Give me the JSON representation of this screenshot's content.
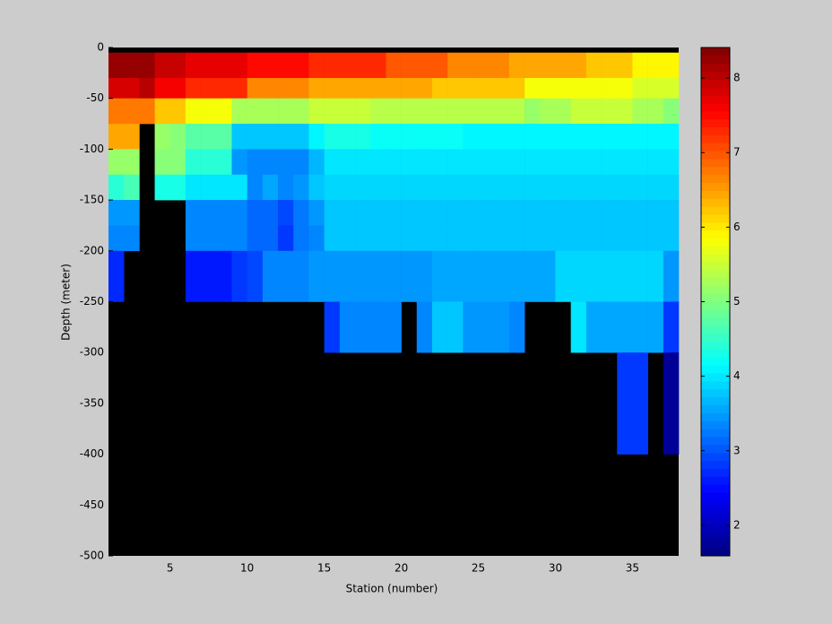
{
  "chart_data": {
    "type": "heatmap",
    "x_label": "Station (number)",
    "y_label": "Depth (meter)",
    "x": [
      1,
      2,
      3,
      4,
      5,
      6,
      7,
      8,
      9,
      10,
      11,
      12,
      13,
      14,
      15,
      16,
      17,
      18,
      19,
      20,
      21,
      22,
      23,
      24,
      25,
      26,
      27,
      28,
      29,
      30,
      31,
      32,
      33,
      34,
      35,
      36,
      37,
      38
    ],
    "y": [
      0,
      -5,
      -30,
      -50,
      -75,
      -100,
      -125,
      -150,
      -175,
      -200,
      -250,
      -300,
      -400,
      -500
    ],
    "z": [
      [
        null,
        null,
        null,
        null,
        null,
        null,
        null,
        null,
        null,
        null,
        null,
        null,
        null,
        null,
        null,
        null,
        null,
        null,
        null,
        null,
        null,
        null,
        null,
        null,
        null,
        null,
        null,
        null,
        null,
        null,
        null,
        null,
        null,
        null,
        null,
        null,
        null
      ],
      [
        8.2,
        8.2,
        8.2,
        7.9,
        7.9,
        7.7,
        7.7,
        7.7,
        7.7,
        7.5,
        7.5,
        7.5,
        7.5,
        7.3,
        7.3,
        7.3,
        7.3,
        7.3,
        7.0,
        7.0,
        7.0,
        7.0,
        6.7,
        6.7,
        6.7,
        6.7,
        6.4,
        6.4,
        6.4,
        6.4,
        6.4,
        6.2,
        6.2,
        6.2,
        5.9,
        5.9,
        5.9
      ],
      [
        7.8,
        7.8,
        8.0,
        7.6,
        7.6,
        7.3,
        7.3,
        7.3,
        7.3,
        6.6,
        6.6,
        6.6,
        6.6,
        6.4,
        6.4,
        6.4,
        6.4,
        6.4,
        6.4,
        6.4,
        6.4,
        6.2,
        6.2,
        6.2,
        6.2,
        6.2,
        6.2,
        5.8,
        5.8,
        5.8,
        5.8,
        5.8,
        5.8,
        5.8,
        5.6,
        5.6,
        5.6
      ],
      [
        6.8,
        6.8,
        6.8,
        6.2,
        6.2,
        5.8,
        5.8,
        5.8,
        5.3,
        5.3,
        5.3,
        5.3,
        5.3,
        5.5,
        5.5,
        5.5,
        5.5,
        5.4,
        5.4,
        5.4,
        5.4,
        5.4,
        5.4,
        5.4,
        5.4,
        5.4,
        5.4,
        5.2,
        5.3,
        5.3,
        5.5,
        5.5,
        5.5,
        5.5,
        5.3,
        5.3,
        5.1
      ],
      [
        6.4,
        6.4,
        null,
        5.2,
        5.0,
        4.7,
        4.7,
        4.7,
        3.8,
        3.8,
        3.8,
        3.8,
        3.8,
        4.1,
        4.3,
        4.3,
        4.3,
        4.2,
        4.2,
        4.2,
        4.2,
        4.2,
        4.2,
        4.1,
        4.1,
        4.1,
        4.1,
        4.1,
        4.1,
        4.1,
        4.1,
        4.1,
        4.1,
        4.1,
        4.1,
        4.1,
        4.1
      ],
      [
        5.2,
        5.2,
        null,
        5.0,
        5.0,
        4.4,
        4.4,
        4.4,
        3.5,
        3.4,
        3.4,
        3.4,
        3.4,
        3.7,
        4.0,
        4.0,
        4.0,
        4.0,
        4.0,
        4.0,
        4.0,
        4.0,
        4.0,
        4.0,
        4.0,
        4.0,
        4.0,
        4.0,
        4.0,
        4.0,
        4.0,
        4.0,
        4.0,
        4.0,
        4.0,
        4.0,
        4.0
      ],
      [
        4.4,
        4.6,
        null,
        4.3,
        4.3,
        4.0,
        4.0,
        4.0,
        4.0,
        3.4,
        3.6,
        3.3,
        3.5,
        3.8,
        3.9,
        3.9,
        3.9,
        3.9,
        3.9,
        3.9,
        3.9,
        3.9,
        3.9,
        3.9,
        3.9,
        3.9,
        3.9,
        3.9,
        3.9,
        3.9,
        3.9,
        3.9,
        3.9,
        3.9,
        3.9,
        3.9,
        3.9
      ],
      [
        3.5,
        3.5,
        null,
        null,
        null,
        3.3,
        3.3,
        3.3,
        3.3,
        3.1,
        3.1,
        2.9,
        3.2,
        3.5,
        3.8,
        3.8,
        3.8,
        3.8,
        3.8,
        3.8,
        3.8,
        3.8,
        3.8,
        3.8,
        3.8,
        3.8,
        3.8,
        3.8,
        3.8,
        3.8,
        3.8,
        3.8,
        3.8,
        3.8,
        3.8,
        3.8,
        3.8
      ],
      [
        3.4,
        3.4,
        null,
        null,
        null,
        3.3,
        3.3,
        3.3,
        3.3,
        3.1,
        3.1,
        2.8,
        3.2,
        3.4,
        3.8,
        3.8,
        3.8,
        3.8,
        3.8,
        3.8,
        3.8,
        3.8,
        3.8,
        3.8,
        3.8,
        3.8,
        3.8,
        3.8,
        3.8,
        3.8,
        3.8,
        3.8,
        3.8,
        3.8,
        3.8,
        3.8,
        3.8
      ],
      [
        2.7,
        null,
        null,
        null,
        null,
        2.6,
        2.6,
        2.6,
        2.8,
        2.9,
        3.3,
        3.3,
        3.3,
        3.5,
        3.5,
        3.5,
        3.5,
        3.5,
        3.5,
        3.5,
        3.5,
        3.6,
        3.6,
        3.6,
        3.6,
        3.6,
        3.6,
        3.6,
        3.6,
        3.9,
        3.9,
        3.9,
        3.9,
        3.9,
        3.9,
        3.9,
        3.5
      ],
      [
        null,
        null,
        null,
        null,
        null,
        null,
        null,
        null,
        null,
        null,
        null,
        null,
        null,
        null,
        2.8,
        3.3,
        3.3,
        3.3,
        3.4,
        null,
        3.4,
        3.8,
        3.8,
        3.5,
        3.5,
        3.5,
        3.3,
        null,
        null,
        null,
        4.0,
        3.6,
        3.6,
        3.6,
        3.6,
        3.6,
        2.8
      ],
      [
        null,
        null,
        null,
        null,
        null,
        null,
        null,
        null,
        null,
        null,
        null,
        null,
        null,
        null,
        null,
        null,
        null,
        null,
        null,
        null,
        null,
        null,
        null,
        null,
        null,
        null,
        null,
        null,
        null,
        null,
        null,
        null,
        null,
        2.8,
        2.8,
        null,
        1.8
      ],
      [
        null,
        null,
        null,
        null,
        null,
        null,
        null,
        null,
        null,
        null,
        null,
        null,
        null,
        null,
        null,
        null,
        null,
        null,
        null,
        null,
        null,
        null,
        null,
        null,
        null,
        null,
        null,
        null,
        null,
        null,
        null,
        null,
        null,
        null,
        null,
        null,
        null
      ]
    ],
    "xlim": [
      1,
      38
    ],
    "ylim": [
      -500,
      0
    ],
    "xticks": [
      5,
      10,
      15,
      20,
      25,
      30,
      35
    ],
    "yticks": [
      0,
      -50,
      -100,
      -150,
      -200,
      -250,
      -300,
      -350,
      -400,
      -450,
      -500
    ],
    "clim": [
      1.59,
      8.41
    ],
    "cticks": [
      2,
      3,
      4,
      5,
      6,
      7,
      8
    ],
    "colormap": "jet",
    "background": "#000000"
  }
}
